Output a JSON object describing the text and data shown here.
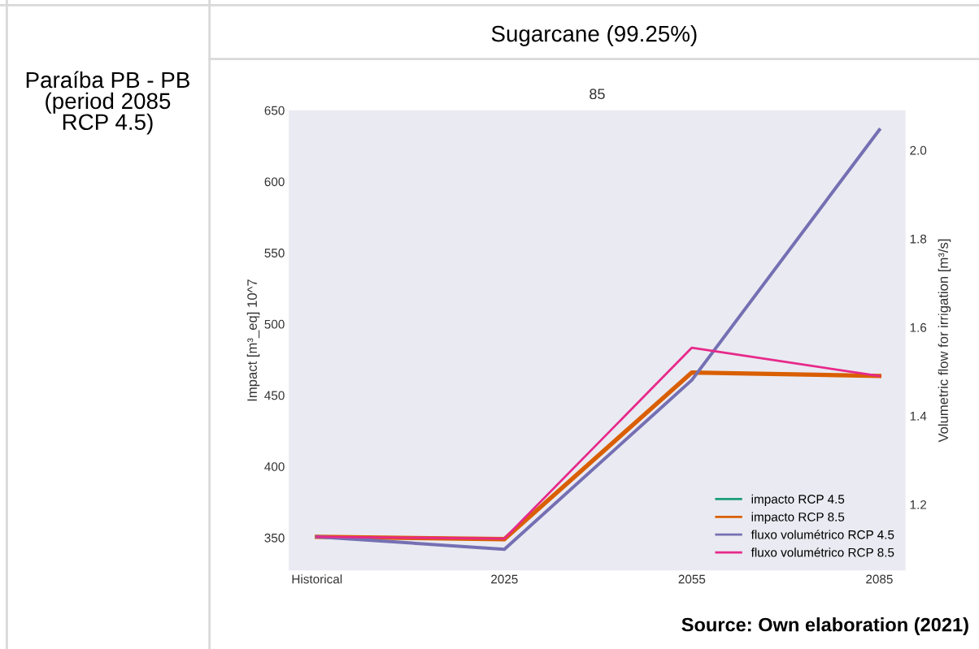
{
  "chart_data": {
    "type": "line",
    "title": "Sugarcane (99.25%)",
    "subtitle": "85",
    "xlabel": null,
    "ylabel": "Impact [m³_eq] 10^7",
    "y2label": "Volumetric flow for irrigation [m³/s]",
    "annotations": [
      "Paraíba PB - PB\n(period 2085\nRCP 4.5)",
      "Source: Own elaboration (2021)"
    ],
    "categories": [
      "Historical",
      "2025",
      "2055",
      "2085"
    ],
    "series": [
      {
        "name": "impacto RCP 4.5",
        "color": "#1b9e77",
        "values": [
          null,
          null,
          null,
          null
        ]
      },
      {
        "name": "impacto RCP 8.5",
        "color": "#d95f02",
        "values": [
          350.6,
          349,
          466,
          463.5
        ]
      },
      {
        "name": "fluxo volumétrico RCP 4.5",
        "color": "#7570b3",
        "axis": "y2",
        "values": [
          1.127,
          1.099,
          1.481,
          2.046
        ]
      },
      {
        "name": "fluxo volumétrico RCP 8.5",
        "color": "#e7298a",
        "axis": "y2",
        "values": [
          1.127,
          1.123,
          1.554,
          1.49
        ]
      }
    ],
    "ylim": [
      327,
      650
    ],
    "yticks": [
      350,
      400,
      450,
      500,
      550,
      600,
      650
    ],
    "y2lim": [
      1.051,
      2.09
    ],
    "y2ticks": [
      1.2,
      1.4,
      1.6,
      1.8,
      {
        "value": 2,
        "label": "2.0"
      }
    ],
    "grid": false,
    "legend": "bottom right",
    "marker": "none",
    "line_style": "solid"
  }
}
